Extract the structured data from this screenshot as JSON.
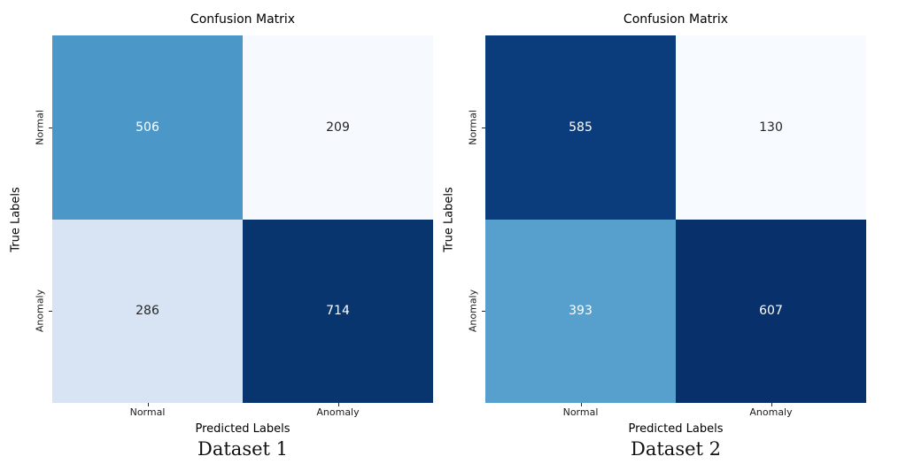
{
  "chart_data": [
    {
      "type": "heatmap",
      "title": "Confusion Matrix",
      "xlabel": "Predicted Labels",
      "ylabel": "True Labels",
      "caption": "Dataset 1",
      "x_categories": [
        "Normal",
        "Anomaly"
      ],
      "y_categories": [
        "Normal",
        "Anomaly"
      ],
      "values": [
        [
          506,
          209
        ],
        [
          286,
          714
        ]
      ],
      "colormap": "Blues",
      "legend": "none",
      "grid": false,
      "cell_colors": [
        [
          "#4b98c8",
          "#f6f9fe"
        ],
        [
          "#d8e4f3",
          "#09356f"
        ]
      ],
      "text_colors": [
        [
          "#ffffff",
          "#262626"
        ],
        [
          "#262626",
          "#ffffff"
        ]
      ]
    },
    {
      "type": "heatmap",
      "title": "Confusion Matrix",
      "xlabel": "Predicted Labels",
      "ylabel": "True Labels",
      "caption": "Dataset 2",
      "x_categories": [
        "Normal",
        "Anomaly"
      ],
      "y_categories": [
        "Normal",
        "Anomaly"
      ],
      "values": [
        [
          585,
          130
        ],
        [
          393,
          607
        ]
      ],
      "colormap": "Blues",
      "legend": "none",
      "grid": false,
      "cell_colors": [
        [
          "#0b3d7c",
          "#f7fbff"
        ],
        [
          "#57a0cd",
          "#08306b"
        ]
      ],
      "text_colors": [
        [
          "#ffffff",
          "#262626"
        ],
        [
          "#ffffff",
          "#ffffff"
        ]
      ]
    }
  ]
}
